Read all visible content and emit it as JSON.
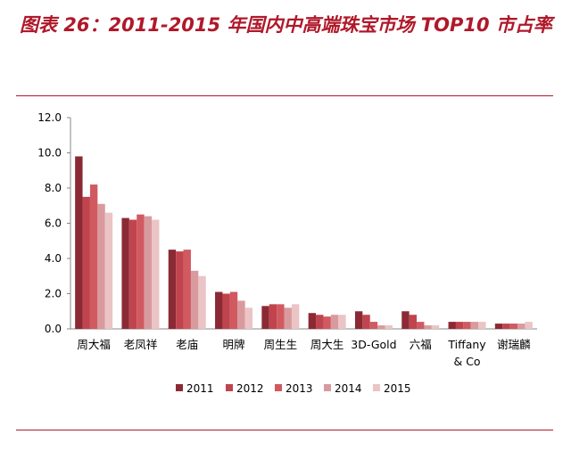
{
  "title": "图表 26：2011-2015 年国内中高端珠宝市场 TOP10 市占率",
  "colors": {
    "accent": "#b0182a",
    "series": [
      "#8b2a34",
      "#c0444d",
      "#d05a60",
      "#d99a9e",
      "#ebc4c6"
    ]
  },
  "chart_data": {
    "type": "bar",
    "title": "",
    "xlabel": "",
    "ylabel": "",
    "ylim": [
      0,
      12
    ],
    "yticks": [
      "0.0",
      "2.0",
      "4.0",
      "6.0",
      "8.0",
      "10.0",
      "12.0"
    ],
    "grid": false,
    "legend_position": "bottom",
    "categories": [
      "周大福",
      "老凤祥",
      "老庙",
      "明牌",
      "周生生",
      "周大生",
      "3D-Gold",
      "六福",
      "Tiffany & Co",
      "谢瑞麟"
    ],
    "series": [
      {
        "name": "2011",
        "values": [
          9.8,
          6.3,
          4.5,
          2.1,
          1.3,
          0.9,
          1.0,
          1.0,
          0.4,
          0.3
        ]
      },
      {
        "name": "2012",
        "values": [
          7.5,
          6.2,
          4.4,
          2.0,
          1.4,
          0.8,
          0.8,
          0.8,
          0.4,
          0.3
        ]
      },
      {
        "name": "2013",
        "values": [
          8.2,
          6.5,
          4.5,
          2.1,
          1.4,
          0.7,
          0.4,
          0.4,
          0.4,
          0.3
        ]
      },
      {
        "name": "2014",
        "values": [
          7.1,
          6.4,
          3.3,
          1.6,
          1.2,
          0.8,
          0.2,
          0.2,
          0.4,
          0.3
        ]
      },
      {
        "name": "2015",
        "values": [
          6.6,
          6.2,
          3.0,
          1.2,
          1.4,
          0.8,
          0.2,
          0.2,
          0.4,
          0.4
        ]
      }
    ]
  }
}
